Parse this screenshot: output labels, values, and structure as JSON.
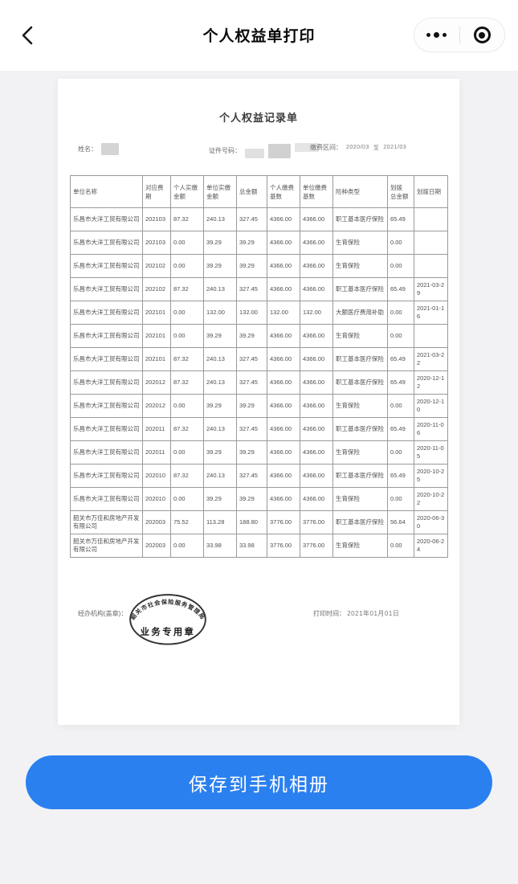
{
  "navbar": {
    "title": "个人权益单打印"
  },
  "document": {
    "title": "个人权益记录单",
    "info": {
      "name_label": "姓名：",
      "id_label": "证件号码：",
      "period_label": "缴费区间：",
      "period_start": "2020/03",
      "period_to": "至",
      "period_end": "2021/03"
    },
    "table": {
      "columns": [
        "单位名称",
        "对应费\n期",
        "个人实缴\n金额",
        "单位实缴\n金额",
        "总金额",
        "个人缴费\n基数",
        "单位缴费\n基数",
        "险种类型",
        "划拨\n总金额",
        "划拨日期"
      ],
      "rows": [
        [
          "乐昌市大洋工贸有限公司",
          "202103",
          "87.32",
          "240.13",
          "327.45",
          "4366.00",
          "4366.00",
          "职工基本医疗保险",
          "65.49",
          ""
        ],
        [
          "乐昌市大洋工贸有限公司",
          "202103",
          "0.00",
          "39.29",
          "39.29",
          "4366.00",
          "4366.00",
          "生育保险",
          "0.00",
          ""
        ],
        [
          "乐昌市大洋工贸有限公司",
          "202102",
          "0.00",
          "39.29",
          "39.29",
          "4366.00",
          "4366.00",
          "生育保险",
          "0.00",
          ""
        ],
        [
          "乐昌市大洋工贸有限公司",
          "202102",
          "87.32",
          "240.13",
          "327.45",
          "4366.00",
          "4366.00",
          "职工基本医疗保险",
          "65.49",
          "2021-03-29"
        ],
        [
          "乐昌市大洋工贸有限公司",
          "202101",
          "0.00",
          "132.00",
          "132.00",
          "132.00",
          "132.00",
          "大额医疗费用补助",
          "0.00",
          "2021-01-16"
        ],
        [
          "乐昌市大洋工贸有限公司",
          "202101",
          "0.00",
          "39.29",
          "39.29",
          "4366.00",
          "4366.00",
          "生育保险",
          "0.00",
          ""
        ],
        [
          "乐昌市大洋工贸有限公司",
          "202101",
          "87.32",
          "240.13",
          "327.45",
          "4366.00",
          "4366.00",
          "职工基本医疗保险",
          "65.49",
          "2021-03-22"
        ],
        [
          "乐昌市大洋工贸有限公司",
          "202012",
          "87.32",
          "240.13",
          "327.45",
          "4366.00",
          "4366.00",
          "职工基本医疗保险",
          "65.49",
          "2020-12-12"
        ],
        [
          "乐昌市大洋工贸有限公司",
          "202012",
          "0.00",
          "39.29",
          "39.29",
          "4366.00",
          "4366.00",
          "生育保险",
          "0.00",
          "2020-12-10"
        ],
        [
          "乐昌市大洋工贸有限公司",
          "202011",
          "87.32",
          "240.13",
          "327.45",
          "4366.00",
          "4366.00",
          "职工基本医疗保险",
          "65.49",
          "2020-11-06"
        ],
        [
          "乐昌市大洋工贸有限公司",
          "202011",
          "0.00",
          "39.29",
          "39.29",
          "4366.00",
          "4366.00",
          "生育保险",
          "0.00",
          "2020-11-05"
        ],
        [
          "乐昌市大洋工贸有限公司",
          "202010",
          "87.32",
          "240.13",
          "327.45",
          "4366.00",
          "4366.00",
          "职工基本医疗保险",
          "65.49",
          "2020-10-25"
        ],
        [
          "乐昌市大洋工贸有限公司",
          "202010",
          "0.00",
          "39.29",
          "39.29",
          "4366.00",
          "4366.00",
          "生育保险",
          "0.00",
          "2020-10-22"
        ],
        [
          "韶关市万佳和房地产开发有限公司",
          "202003",
          "75.52",
          "113.28",
          "188.80",
          "3776.00",
          "3776.00",
          "职工基本医疗保险",
          "56.64",
          "2020-06-30"
        ],
        [
          "韶关市万佳和房地产开发有限公司",
          "202003",
          "0.00",
          "33.98",
          "33.98",
          "3776.00",
          "3776.00",
          "生育保险",
          "0.00",
          "2020-06-24"
        ]
      ]
    },
    "footer": {
      "agency_label": "经办机构(盖章)：",
      "print_time_label": "打印时间：",
      "print_time_value": "2021年01月01日"
    },
    "stamp": {
      "arc_text": "韶关市社会保险服务管理局",
      "center_text": "业务专用章"
    }
  },
  "save_button": {
    "label": "保存到手机相册"
  },
  "colors": {
    "accent_blue": "#2b80f0",
    "page_background": "#f2f2f4"
  }
}
